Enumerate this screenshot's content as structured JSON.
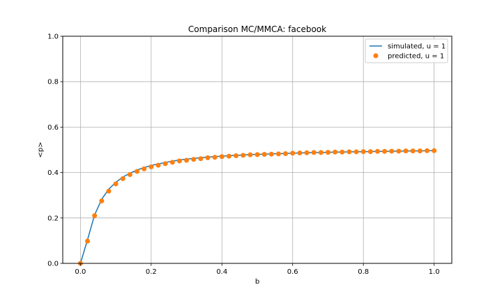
{
  "chart_data": {
    "type": "line",
    "title": "Comparison MC/MMCA: facebook",
    "xlabel": "b",
    "ylabel": "<p>",
    "xlim": [
      -0.05,
      1.05
    ],
    "ylim": [
      0.0,
      1.0
    ],
    "xticks": [
      "0.0",
      "0.2",
      "0.4",
      "0.6",
      "0.8",
      "1.0"
    ],
    "yticks": [
      "0.0",
      "0.2",
      "0.4",
      "0.6",
      "0.8",
      "1.0"
    ],
    "grid": true,
    "legend_position": "top-right",
    "series": [
      {
        "name": "simulated, u = 1",
        "style": "line",
        "color": "#1f77b4",
        "x": [
          0.0,
          0.02,
          0.04,
          0.06,
          0.08,
          0.1,
          0.12,
          0.14,
          0.16,
          0.18,
          0.2,
          0.22,
          0.24,
          0.26,
          0.28,
          0.3,
          0.32,
          0.34,
          0.36,
          0.38,
          0.4,
          0.42,
          0.44,
          0.46,
          0.48,
          0.5,
          0.52,
          0.54,
          0.56,
          0.58,
          0.6,
          0.62,
          0.64,
          0.66,
          0.68,
          0.7,
          0.72,
          0.74,
          0.76,
          0.78,
          0.8,
          0.82,
          0.84,
          0.86,
          0.88,
          0.9,
          0.92,
          0.94,
          0.96,
          0.98,
          1.0
        ],
        "y": [
          0.0,
          0.104,
          0.213,
          0.282,
          0.327,
          0.357,
          0.38,
          0.397,
          0.411,
          0.422,
          0.431,
          0.438,
          0.444,
          0.45,
          0.455,
          0.459,
          0.462,
          0.465,
          0.468,
          0.47,
          0.472,
          0.474,
          0.476,
          0.477,
          0.479,
          0.48,
          0.481,
          0.482,
          0.483,
          0.484,
          0.485,
          0.486,
          0.487,
          0.488,
          0.488,
          0.489,
          0.49,
          0.49,
          0.491,
          0.491,
          0.492,
          0.492,
          0.493,
          0.493,
          0.494,
          0.494,
          0.495,
          0.495,
          0.495,
          0.496,
          0.496
        ]
      },
      {
        "name": "predicted, u = 1",
        "style": "markers",
        "color": "#ff7f0e",
        "x": [
          0.0,
          0.02,
          0.04,
          0.06,
          0.08,
          0.1,
          0.12,
          0.14,
          0.16,
          0.18,
          0.2,
          0.22,
          0.24,
          0.26,
          0.28,
          0.3,
          0.32,
          0.34,
          0.36,
          0.38,
          0.4,
          0.42,
          0.44,
          0.46,
          0.48,
          0.5,
          0.52,
          0.54,
          0.56,
          0.58,
          0.6,
          0.62,
          0.64,
          0.66,
          0.68,
          0.7,
          0.72,
          0.74,
          0.76,
          0.78,
          0.8,
          0.82,
          0.84,
          0.86,
          0.88,
          0.9,
          0.92,
          0.94,
          0.96,
          0.98,
          1.0
        ],
        "y": [
          0.0,
          0.098,
          0.21,
          0.275,
          0.318,
          0.35,
          0.373,
          0.391,
          0.405,
          0.416,
          0.425,
          0.432,
          0.439,
          0.445,
          0.451,
          0.454,
          0.458,
          0.461,
          0.465,
          0.467,
          0.47,
          0.472,
          0.474,
          0.476,
          0.478,
          0.479,
          0.48,
          0.481,
          0.482,
          0.483,
          0.485,
          0.486,
          0.487,
          0.488,
          0.488,
          0.489,
          0.49,
          0.49,
          0.491,
          0.491,
          0.492,
          0.492,
          0.493,
          0.493,
          0.494,
          0.494,
          0.495,
          0.495,
          0.495,
          0.496,
          0.496
        ]
      }
    ]
  }
}
